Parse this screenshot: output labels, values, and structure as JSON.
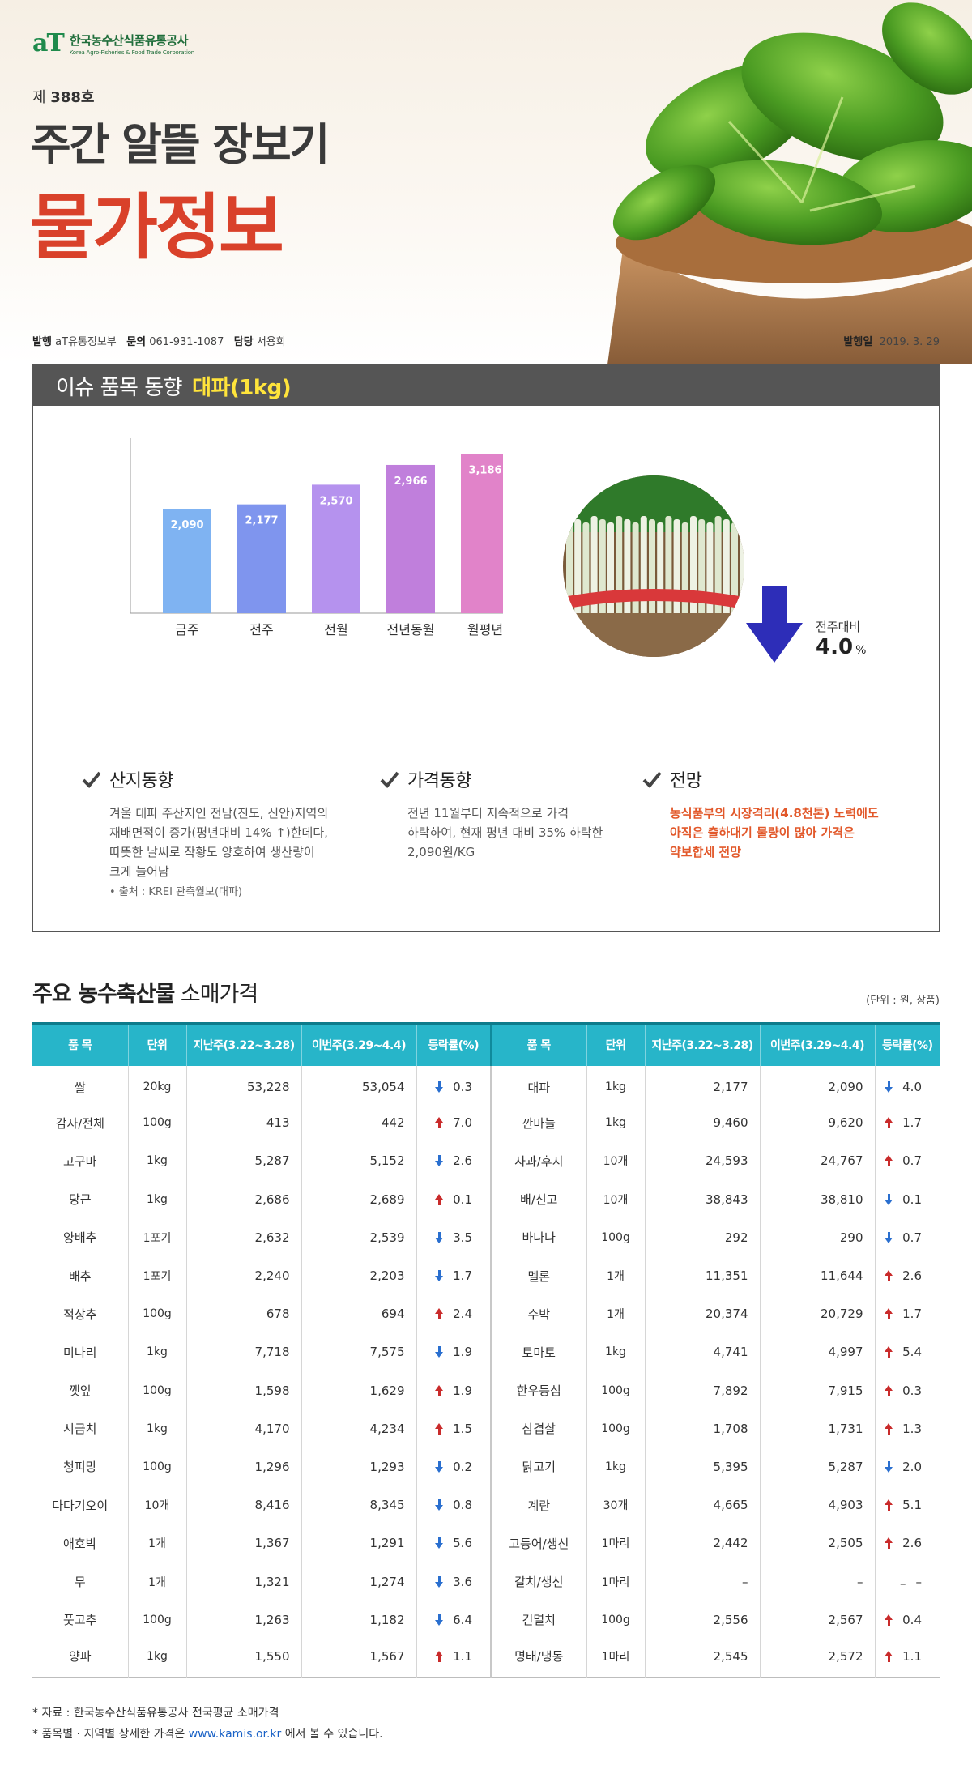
{
  "header": {
    "logo_mark": "aT",
    "logo_ko": "한국농수산식품유통공사",
    "logo_en": "Korea Agro-Fisheries & Food Trade Corporation",
    "issue_prefix": "제",
    "issue_no": "388",
    "issue_suffix": "호",
    "title_line1": "주간 알뜰 장보기",
    "title_line2": "물가정보",
    "publisher_label": "발행",
    "publisher": "aT유통정보부",
    "contact_label": "문의",
    "contact": "061-931-1087",
    "manager_label": "담당",
    "manager": "서용희",
    "date_label": "발행일",
    "date": "2019. 3. 29"
  },
  "issue_item": {
    "label": "이슈 품목 동향",
    "item": "대파(1kg)",
    "chart_data": {
      "type": "bar",
      "categories": [
        "금주",
        "전주",
        "전월",
        "전년동월",
        "월평년"
      ],
      "values": [
        2090,
        2177,
        2570,
        2966,
        3186
      ],
      "value_labels": [
        "2,090",
        "2,177",
        "2,570",
        "2,966",
        "3,186"
      ],
      "colors": [
        "#7fb3f2",
        "#7f95ee",
        "#b592ee",
        "#c07fdc",
        "#e183c9"
      ],
      "ylim": [
        0,
        3500
      ],
      "title": "",
      "xlabel": "",
      "ylabel": ""
    },
    "wow_label": "전주대비",
    "wow_value": "4.0",
    "wow_unit": "%",
    "columns": [
      {
        "title": "산지동향",
        "lines": [
          "겨울 대파 주산지인 전남(진도, 신안)지역의",
          "재배면적이 증가(평년대비 14% ↑)한데다,",
          "따뜻한 날씨로 작황도 양호하여 생산량이",
          "크게 늘어남"
        ],
        "source": "• 출처 : KREI 관측월보(대파)"
      },
      {
        "title": "가격동향",
        "lines": [
          "전년 11월부터 지속적으로 가격",
          "하락하여, 현재 평년 대비 35% 하락한",
          "2,090원/KG"
        ]
      },
      {
        "title": "전망",
        "lines": [
          "농식품부의 시장격리(4.8천톤) 노력에도",
          "아직은 출하대기 물량이 많아 가격은",
          "약보합세 전망"
        ]
      }
    ]
  },
  "retail": {
    "title_bold": "주요 농수축산물",
    "title_rest": "소매가격",
    "unit_note": "(단위 : 원, 상품)",
    "headers": [
      "품 목",
      "단위",
      "지난주(3.22~3.28)",
      "이번주(3.29~4.4)",
      "등락률(%)",
      "품 목",
      "단위",
      "지난주(3.22~3.28)",
      "이번주(3.29~4.4)",
      "등락률(%)"
    ],
    "rows": [
      [
        {
          "name": "쌀",
          "unit": "20kg",
          "prev": "53,228",
          "curr": "53,054",
          "dir": "down",
          "rate": "0.3"
        },
        {
          "name": "대파",
          "unit": "1kg",
          "prev": "2,177",
          "curr": "2,090",
          "dir": "down",
          "rate": "4.0"
        }
      ],
      [
        {
          "name": "감자/전체",
          "unit": "100g",
          "prev": "413",
          "curr": "442",
          "dir": "up",
          "rate": "7.0"
        },
        {
          "name": "깐마늘",
          "unit": "1kg",
          "prev": "9,460",
          "curr": "9,620",
          "dir": "up",
          "rate": "1.7"
        }
      ],
      [
        {
          "name": "고구마",
          "unit": "1kg",
          "prev": "5,287",
          "curr": "5,152",
          "dir": "down",
          "rate": "2.6"
        },
        {
          "name": "사과/후지",
          "unit": "10개",
          "prev": "24,593",
          "curr": "24,767",
          "dir": "up",
          "rate": "0.7"
        }
      ],
      [
        {
          "name": "당근",
          "unit": "1kg",
          "prev": "2,686",
          "curr": "2,689",
          "dir": "up",
          "rate": "0.1"
        },
        {
          "name": "배/신고",
          "unit": "10개",
          "prev": "38,843",
          "curr": "38,810",
          "dir": "down",
          "rate": "0.1"
        }
      ],
      [
        {
          "name": "양배추",
          "unit": "1포기",
          "prev": "2,632",
          "curr": "2,539",
          "dir": "down",
          "rate": "3.5"
        },
        {
          "name": "바나나",
          "unit": "100g",
          "prev": "292",
          "curr": "290",
          "dir": "down",
          "rate": "0.7"
        }
      ],
      [
        {
          "name": "배추",
          "unit": "1포기",
          "prev": "2,240",
          "curr": "2,203",
          "dir": "down",
          "rate": "1.7"
        },
        {
          "name": "멜론",
          "unit": "1개",
          "prev": "11,351",
          "curr": "11,644",
          "dir": "up",
          "rate": "2.6"
        }
      ],
      [
        {
          "name": "적상추",
          "unit": "100g",
          "prev": "678",
          "curr": "694",
          "dir": "up",
          "rate": "2.4"
        },
        {
          "name": "수박",
          "unit": "1개",
          "prev": "20,374",
          "curr": "20,729",
          "dir": "up",
          "rate": "1.7"
        }
      ],
      [
        {
          "name": "미나리",
          "unit": "1kg",
          "prev": "7,718",
          "curr": "7,575",
          "dir": "down",
          "rate": "1.9"
        },
        {
          "name": "토마토",
          "unit": "1kg",
          "prev": "4,741",
          "curr": "4,997",
          "dir": "up",
          "rate": "5.4"
        }
      ],
      [
        {
          "name": "깻잎",
          "unit": "100g",
          "prev": "1,598",
          "curr": "1,629",
          "dir": "up",
          "rate": "1.9"
        },
        {
          "name": "한우등심",
          "unit": "100g",
          "prev": "7,892",
          "curr": "7,915",
          "dir": "up",
          "rate": "0.3"
        }
      ],
      [
        {
          "name": "시금치",
          "unit": "1kg",
          "prev": "4,170",
          "curr": "4,234",
          "dir": "up",
          "rate": "1.5"
        },
        {
          "name": "삼겹살",
          "unit": "100g",
          "prev": "1,708",
          "curr": "1,731",
          "dir": "up",
          "rate": "1.3"
        }
      ],
      [
        {
          "name": "청피망",
          "unit": "100g",
          "prev": "1,296",
          "curr": "1,293",
          "dir": "down",
          "rate": "0.2"
        },
        {
          "name": "닭고기",
          "unit": "1kg",
          "prev": "5,395",
          "curr": "5,287",
          "dir": "down",
          "rate": "2.0"
        }
      ],
      [
        {
          "name": "다다기오이",
          "unit": "10개",
          "prev": "8,416",
          "curr": "8,345",
          "dir": "down",
          "rate": "0.8"
        },
        {
          "name": "계란",
          "unit": "30개",
          "prev": "4,665",
          "curr": "4,903",
          "dir": "up",
          "rate": "5.1"
        }
      ],
      [
        {
          "name": "애호박",
          "unit": "1개",
          "prev": "1,367",
          "curr": "1,291",
          "dir": "down",
          "rate": "5.6"
        },
        {
          "name": "고등어/생선",
          "unit": "1마리",
          "prev": "2,442",
          "curr": "2,505",
          "dir": "up",
          "rate": "2.6"
        }
      ],
      [
        {
          "name": "무",
          "unit": "1개",
          "prev": "1,321",
          "curr": "1,274",
          "dir": "down",
          "rate": "3.6"
        },
        {
          "name": "갈치/생선",
          "unit": "1마리",
          "prev": "–",
          "curr": "–",
          "dir": "none",
          "rate": "–"
        }
      ],
      [
        {
          "name": "풋고추",
          "unit": "100g",
          "prev": "1,263",
          "curr": "1,182",
          "dir": "down",
          "rate": "6.4"
        },
        {
          "name": "건멸치",
          "unit": "100g",
          "prev": "2,556",
          "curr": "2,567",
          "dir": "up",
          "rate": "0.4"
        }
      ],
      [
        {
          "name": "양파",
          "unit": "1kg",
          "prev": "1,550",
          "curr": "1,567",
          "dir": "up",
          "rate": "1.1"
        },
        {
          "name": "명태/냉동",
          "unit": "1마리",
          "prev": "2,545",
          "curr": "2,572",
          "dir": "up",
          "rate": "1.1"
        }
      ]
    ]
  },
  "footer": {
    "note1": "* 자료 : 한국농수산식품유통공사 전국평균 소매가격",
    "note2_pre": "* 품목별 · 지역별 상세한 가격은",
    "note2_link": "www.kamis.or.kr",
    "note2_post": "에서 볼 수 있습니다."
  }
}
